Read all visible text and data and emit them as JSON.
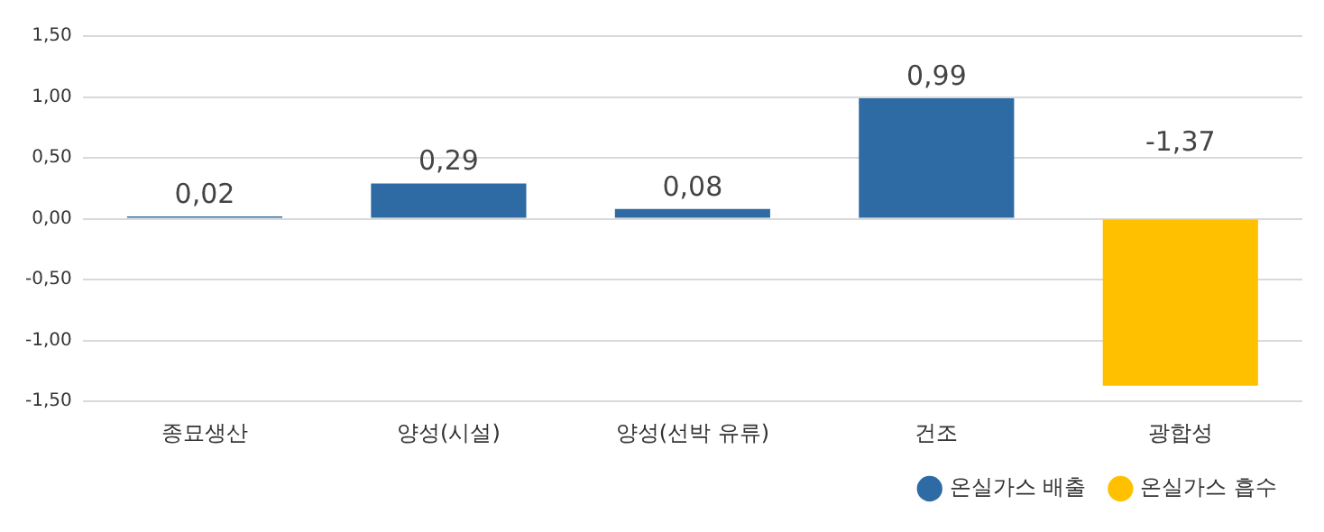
{
  "chart_data": {
    "type": "bar",
    "categories": [
      "종묘생산",
      "양성(시설)",
      "양성(선박 유류)",
      "건조",
      "광합성"
    ],
    "series": [
      {
        "name": "온실가스 배출",
        "color": "#2e6aa3",
        "values": [
          0.02,
          0.29,
          0.08,
          0.99,
          null
        ],
        "value_labels": [
          "0,02",
          "0,29",
          "0,08",
          "0,99",
          null
        ]
      },
      {
        "name": "온실가스 흡수",
        "color": "#ffc000",
        "values": [
          null,
          null,
          null,
          null,
          -1.37
        ],
        "value_labels": [
          null,
          null,
          null,
          null,
          "-1,37"
        ]
      }
    ],
    "ylim": [
      -1.5,
      1.5
    ],
    "yticks": [
      {
        "value": -1.5,
        "label": "-1,50"
      },
      {
        "value": -1,
        "label": "-1,00"
      },
      {
        "value": -0.5,
        "label": "-0,50"
      },
      {
        "value": 0,
        "label": "0,00"
      },
      {
        "value": 0.5,
        "label": "0,50"
      },
      {
        "value": 1,
        "label": "1,00"
      },
      {
        "value": 1.5,
        "label": "1,50"
      }
    ],
    "grid": "y",
    "legend": "bottom right",
    "marker": "circle"
  }
}
